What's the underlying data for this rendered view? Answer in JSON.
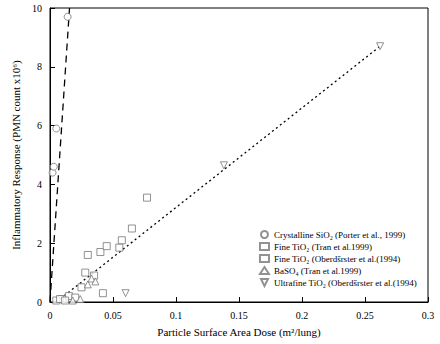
{
  "chart_data": {
    "type": "scatter",
    "x_label": "Particle Surface Area Dose (m²/lung)",
    "y_label": "Inflammatory Response (PMN count x10⁶)",
    "xlim": [
      0,
      0.3
    ],
    "xticks": [
      0,
      0.05,
      0.1,
      0.15,
      0.2,
      0.25,
      0.3
    ],
    "ylim": [
      0,
      10
    ],
    "yticks": [
      0,
      2,
      4,
      6,
      8,
      10
    ],
    "grid": false,
    "legend": "lower right",
    "series": [
      {
        "name": "Crystalline SiO₂ (Porter et al., 1999)",
        "marker": "circle",
        "color": "#777777",
        "values": [
          [
            0.002,
            4.4
          ],
          [
            0.003,
            4.6
          ],
          [
            0.005,
            5.9
          ],
          [
            0.014,
            9.7
          ]
        ]
      },
      {
        "name": "Fine TiO₂ (Tran et al.1999)",
        "marker": "square",
        "color": "#777777",
        "values": [
          [
            0.01,
            0.1
          ],
          [
            0.015,
            0.2
          ],
          [
            0.02,
            0.15
          ],
          [
            0.025,
            0.5
          ],
          [
            0.028,
            1.0
          ],
          [
            0.03,
            1.6
          ],
          [
            0.035,
            0.9
          ],
          [
            0.04,
            1.7
          ],
          [
            0.042,
            0.3
          ],
          [
            0.045,
            1.9
          ],
          [
            0.055,
            1.85
          ],
          [
            0.057,
            2.1
          ],
          [
            0.065,
            2.5
          ],
          [
            0.077,
            3.55
          ]
        ]
      },
      {
        "name": "Fine TiO₂ (Oberdšrster et al.(1994)",
        "marker": "square",
        "color": "#777777",
        "values": [
          [
            0.005,
            0.05
          ],
          [
            0.008,
            0.1
          ],
          [
            0.012,
            0.05
          ]
        ]
      },
      {
        "name": "BaSO₄ (Tran et al.1999)",
        "marker": "triangle",
        "color": "#777777",
        "values": [
          [
            0.018,
            0.05
          ],
          [
            0.024,
            0.1
          ],
          [
            0.03,
            0.6
          ],
          [
            0.033,
            0.8
          ],
          [
            0.036,
            0.7
          ]
        ]
      },
      {
        "name": "Ultrafine TiO₂ (Oberdšrster et al.(1994)",
        "marker": "triangle_down",
        "color": "#777777",
        "values": [
          [
            0.06,
            0.3
          ],
          [
            0.138,
            4.65
          ],
          [
            0.262,
            8.7
          ]
        ]
      },
      {
        "type": "line",
        "line_style": "dashed",
        "color": "#000000",
        "values": [
          [
            0,
            0
          ],
          [
            0.0155,
            10
          ]
        ]
      },
      {
        "type": "line",
        "line_style": "dotted",
        "color": "#000000",
        "values": [
          [
            0.005,
            0
          ],
          [
            0.262,
            8.7
          ]
        ]
      }
    ]
  }
}
